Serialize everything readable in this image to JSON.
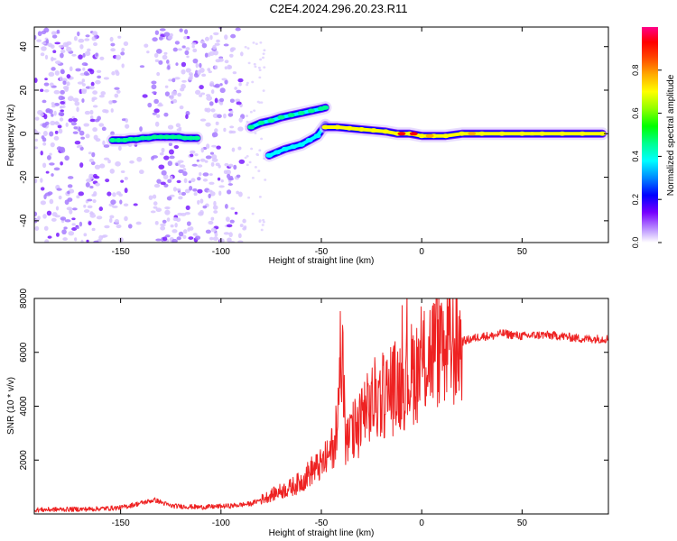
{
  "title": "C2E4.2024.296.20.23.R11",
  "chart_data": [
    {
      "type": "heatmap",
      "xlabel": "Height of straight line (km)",
      "ylabel": "Frequency (Hz)",
      "xlim": [
        -193,
        93
      ],
      "ylim": [
        -50,
        49
      ],
      "xticks": [
        -150,
        -100,
        -50,
        0,
        50
      ],
      "yticks": [
        -40,
        -20,
        0,
        20,
        40
      ],
      "colorbar": {
        "label": "Normalized spectral amplitude",
        "range": [
          0,
          1
        ],
        "ticks": [
          0.0,
          0.2,
          0.4,
          0.6,
          0.8
        ],
        "tick_labels": [
          "0.0",
          "0.2",
          "0.4",
          "0.6",
          "0.8"
        ]
      },
      "features": [
        {
          "name": "main-track-left",
          "x": [
            -154,
            -151,
            -148,
            -145,
            -142,
            -139,
            -136,
            -133,
            -130,
            -127,
            -124,
            -121,
            -118,
            -115,
            -112
          ],
          "y": [
            -3,
            -3,
            -3,
            -2.5,
            -2.5,
            -2,
            -2,
            -1.5,
            -1.5,
            -1.5,
            -1.5,
            -1.5,
            -2,
            -2,
            -2
          ],
          "amplitude": 0.45
        },
        {
          "name": "upper-branch",
          "x": [
            -85,
            -80,
            -75,
            -70,
            -65,
            -60,
            -55,
            -50,
            -48
          ],
          "y": [
            3,
            5,
            6,
            7.5,
            8.5,
            9.5,
            10.5,
            11.5,
            12
          ],
          "amplitude": 0.45
        },
        {
          "name": "lower-branch",
          "x": [
            -76,
            -72,
            -68,
            -64,
            -60,
            -56,
            -52,
            -48
          ],
          "y": [
            -10,
            -8.5,
            -7,
            -6,
            -5,
            -3,
            -1,
            4
          ],
          "amplitude": 0.4
        },
        {
          "name": "main-track-right",
          "x": [
            -48,
            -42,
            -36,
            -30,
            -24,
            -18,
            -12,
            -6,
            0,
            6,
            12,
            20,
            30,
            40,
            50,
            60,
            70,
            80,
            90
          ],
          "y": [
            3,
            3,
            2.5,
            2,
            1.5,
            1,
            0,
            0,
            -1,
            -1,
            -1,
            0,
            0,
            0,
            0,
            0,
            0,
            0,
            0
          ],
          "amplitude": 0.7
        },
        {
          "name": "noise-scatter-left",
          "x_range": [
            -193,
            -88
          ],
          "y_range": [
            -50,
            49
          ],
          "amplitude": 0.08
        }
      ]
    },
    {
      "type": "line",
      "xlabel": "Height of straight line (km)",
      "ylabel": "SNR (10 * v/v)",
      "xlim": [
        -193,
        93
      ],
      "ylim": [
        0,
        8000
      ],
      "xticks": [
        -150,
        -100,
        -50,
        0,
        50
      ],
      "yticks": [
        2000,
        4000,
        6000,
        8000
      ],
      "color": "#ee2222",
      "series": [
        {
          "name": "SNR",
          "x": [
            -193,
            -180,
            -165,
            -150,
            -140,
            -133,
            -125,
            -110,
            -95,
            -85,
            -78,
            -72,
            -66,
            -60,
            -55,
            -50,
            -46,
            -42,
            -40,
            -39,
            -38,
            -36,
            -32,
            -28,
            -24,
            -20,
            -16,
            -12,
            -8,
            -4,
            0,
            4,
            8,
            12,
            16,
            20,
            25,
            30,
            35,
            40,
            45,
            50,
            60,
            70,
            80,
            93
          ],
          "y": [
            150,
            170,
            180,
            230,
            400,
            520,
            300,
            250,
            300,
            380,
            600,
            800,
            950,
            1200,
            1600,
            1800,
            2200,
            3000,
            7000,
            5000,
            2500,
            2800,
            3300,
            3700,
            4200,
            4400,
            4500,
            4800,
            5000,
            5300,
            5500,
            6000,
            6200,
            6200,
            6200,
            6400,
            6500,
            6600,
            6600,
            6700,
            6650,
            6600,
            6650,
            6600,
            6500,
            6500
          ]
        }
      ]
    }
  ]
}
